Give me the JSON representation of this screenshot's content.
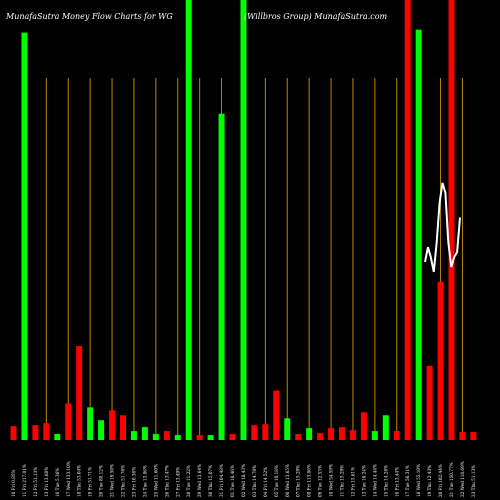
{
  "chart_data": {
    "type": "bar",
    "title_left": "MunafaSutra  Money Flow  Charts for WG",
    "title_right": "(Willbros Group) MunafaSutra.com",
    "colors": {
      "background": "#000000",
      "up": "#00ff00",
      "down": "#ff0000",
      "grid": "#b8860b",
      "line": "#ffffff"
    },
    "grid": true,
    "ylim": [
      0,
      445
    ],
    "categories": [
      "10 Fri 0.85%",
      "11 Fri 217.01%",
      "12 Fri 51.13%",
      "13 Fri 13.68%",
      "16 Tue 5.36%",
      "17 Wed 133.10%",
      "18 Thu 53.04%",
      "19 Fri 51.71%",
      "20 Tue 80.12%",
      "21 Wed 19.50%",
      "22 Thu 51.76%",
      "23 Fri 10.36%",
      "24 Tue 13.86%",
      "25 Wed 11.60%",
      "26 Thu 13.47%",
      "27 Fri 13.49%",
      "28 Tue 11.22%",
      "29 Wed 13.64%",
      "30 Thu 15.07%",
      "31 Fri 104.48%",
      "01 Tue 16.46%",
      "02 Wed 18.43%",
      "03 Thu 14.70%",
      "04 Fri 14.52%",
      "05 Tue 10.18%",
      "06 Wed 13.65%",
      "07 Thu 15.29%",
      "08 Fri 113.86%",
      "09 Tue 12.53%",
      "10 Wed 54.59%",
      "11 Thu 15.29%",
      "12 Fri 15.61%",
      "13 Tue 16.24%",
      "14 Wed 14.44%",
      "15 Thu 14.28%",
      "16 Fri 13.44%",
      "17 Tue 56.31%",
      "18 Wed 55.10%",
      "19 Thu 12.43%",
      "20 Fri 102.44%",
      "21 Tue 150.77%",
      "22 Wed 118.69%",
      "23 Thu 51.13%"
    ],
    "series": [
      {
        "values": [
          14,
          412,
          15,
          17,
          6,
          37,
          95,
          33,
          20,
          30,
          25,
          9,
          13,
          6,
          9,
          5,
          445,
          5,
          5,
          330,
          6,
          445,
          15,
          16,
          50,
          22,
          6,
          12,
          7,
          12,
          13,
          10,
          28,
          9,
          25,
          9,
          445,
          415,
          75,
          160,
          445,
          8,
          8
        ],
        "colors": [
          "down",
          "up",
          "down",
          "down",
          "up",
          "down",
          "down",
          "up",
          "up",
          "down",
          "down",
          "up",
          "up",
          "up",
          "down",
          "up",
          "up",
          "down",
          "up",
          "up",
          "down",
          "up",
          "down",
          "down",
          "down",
          "up",
          "down",
          "up",
          "down",
          "down",
          "down",
          "down",
          "down",
          "up",
          "up",
          "down",
          "down",
          "up",
          "down",
          "down",
          "down",
          "down",
          "down"
        ]
      }
    ],
    "line": {
      "values": [
        180,
        195,
        185,
        170,
        200,
        240,
        260,
        250,
        200,
        175,
        185,
        190,
        225
      ]
    }
  }
}
